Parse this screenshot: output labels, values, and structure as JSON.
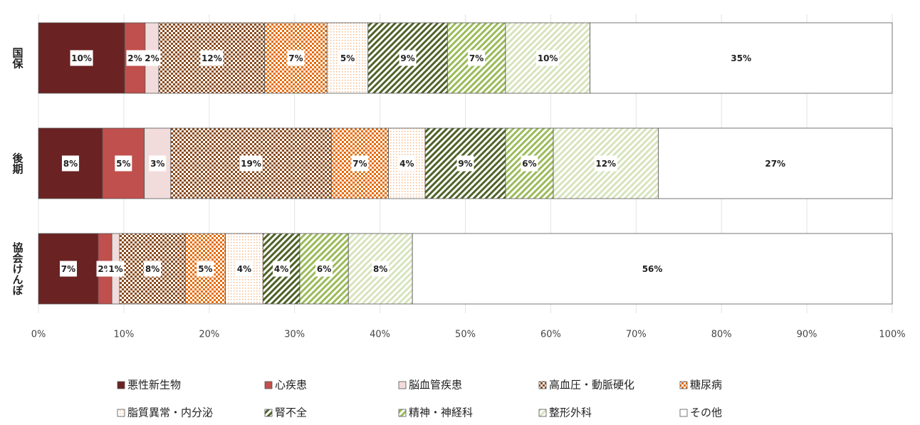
{
  "chart_data": {
    "type": "stacked_barh",
    "categories": [
      "国保",
      "後期",
      "協会けんぽ"
    ],
    "xlim": [
      0,
      100
    ],
    "xticks": [
      {
        "value": 0,
        "label": "0%"
      },
      {
        "value": 10,
        "label": "10%"
      },
      {
        "value": 20,
        "label": "20%"
      },
      {
        "value": 30,
        "label": "30%"
      },
      {
        "value": 40,
        "label": "40%"
      },
      {
        "value": 50,
        "label": "50%"
      },
      {
        "value": 60,
        "label": "60%"
      },
      {
        "value": 70,
        "label": "70%"
      },
      {
        "value": 80,
        "label": "80%"
      },
      {
        "value": 90,
        "label": "90%"
      },
      {
        "value": 100,
        "label": "100%"
      }
    ],
    "grid": true,
    "legend": "bottom",
    "series": [
      {
        "name": "悪性新生物",
        "color": "#6b2222",
        "pattern": "solid",
        "values": [
          10.1,
          7.5,
          7.0
        ],
        "value_labels": [
          "10%",
          "8%",
          "7%"
        ]
      },
      {
        "name": "心疾患",
        "color": "#c0504d",
        "pattern": "solid",
        "values": [
          2.4,
          4.9,
          1.6
        ],
        "value_labels": [
          "2%",
          "5%",
          "2%"
        ]
      },
      {
        "name": "脳血管疾患",
        "color": "#f2dcdb",
        "pattern": "solid",
        "values": [
          1.6,
          3.1,
          0.9
        ],
        "value_labels": [
          "2%",
          "3%",
          "1%"
        ]
      },
      {
        "name": "高血圧・動脈硬化",
        "color": "#8a4a1c",
        "pattern": "checker",
        "values": [
          12.4,
          18.8,
          7.7
        ],
        "value_labels": [
          "12%",
          "19%",
          "8%"
        ]
      },
      {
        "name": "糖尿病",
        "color": "#e46c0a",
        "pattern": "checker",
        "values": [
          7.3,
          6.7,
          4.7
        ],
        "value_labels": [
          "7%",
          "7%",
          "5%"
        ]
      },
      {
        "name": "脂質異常・内分泌",
        "color": "#f7b98a",
        "pattern": "dots",
        "values": [
          4.8,
          4.3,
          4.4
        ],
        "value_labels": [
          "5%",
          "4%",
          "4%"
        ]
      },
      {
        "name": "腎不全",
        "color": "#4f6228",
        "pattern": "diagonal",
        "values": [
          9.3,
          9.4,
          4.3
        ],
        "value_labels": [
          "9%",
          "9%",
          "4%"
        ]
      },
      {
        "name": "精神・神経科",
        "color": "#9bbb59",
        "pattern": "diagonal",
        "values": [
          6.8,
          5.6,
          5.7
        ],
        "value_labels": [
          "7%",
          "6%",
          "6%"
        ]
      },
      {
        "name": "整形外科",
        "color": "#d7e4bd",
        "pattern": "diagonal",
        "values": [
          9.9,
          12.3,
          7.5
        ],
        "value_labels": [
          "10%",
          "12%",
          "8%"
        ]
      },
      {
        "name": "その他",
        "color": "#ffffff",
        "pattern": "solid",
        "values": [
          35.4,
          27.4,
          56.2
        ],
        "value_labels": [
          "35%",
          "27%",
          "56%"
        ]
      }
    ]
  }
}
